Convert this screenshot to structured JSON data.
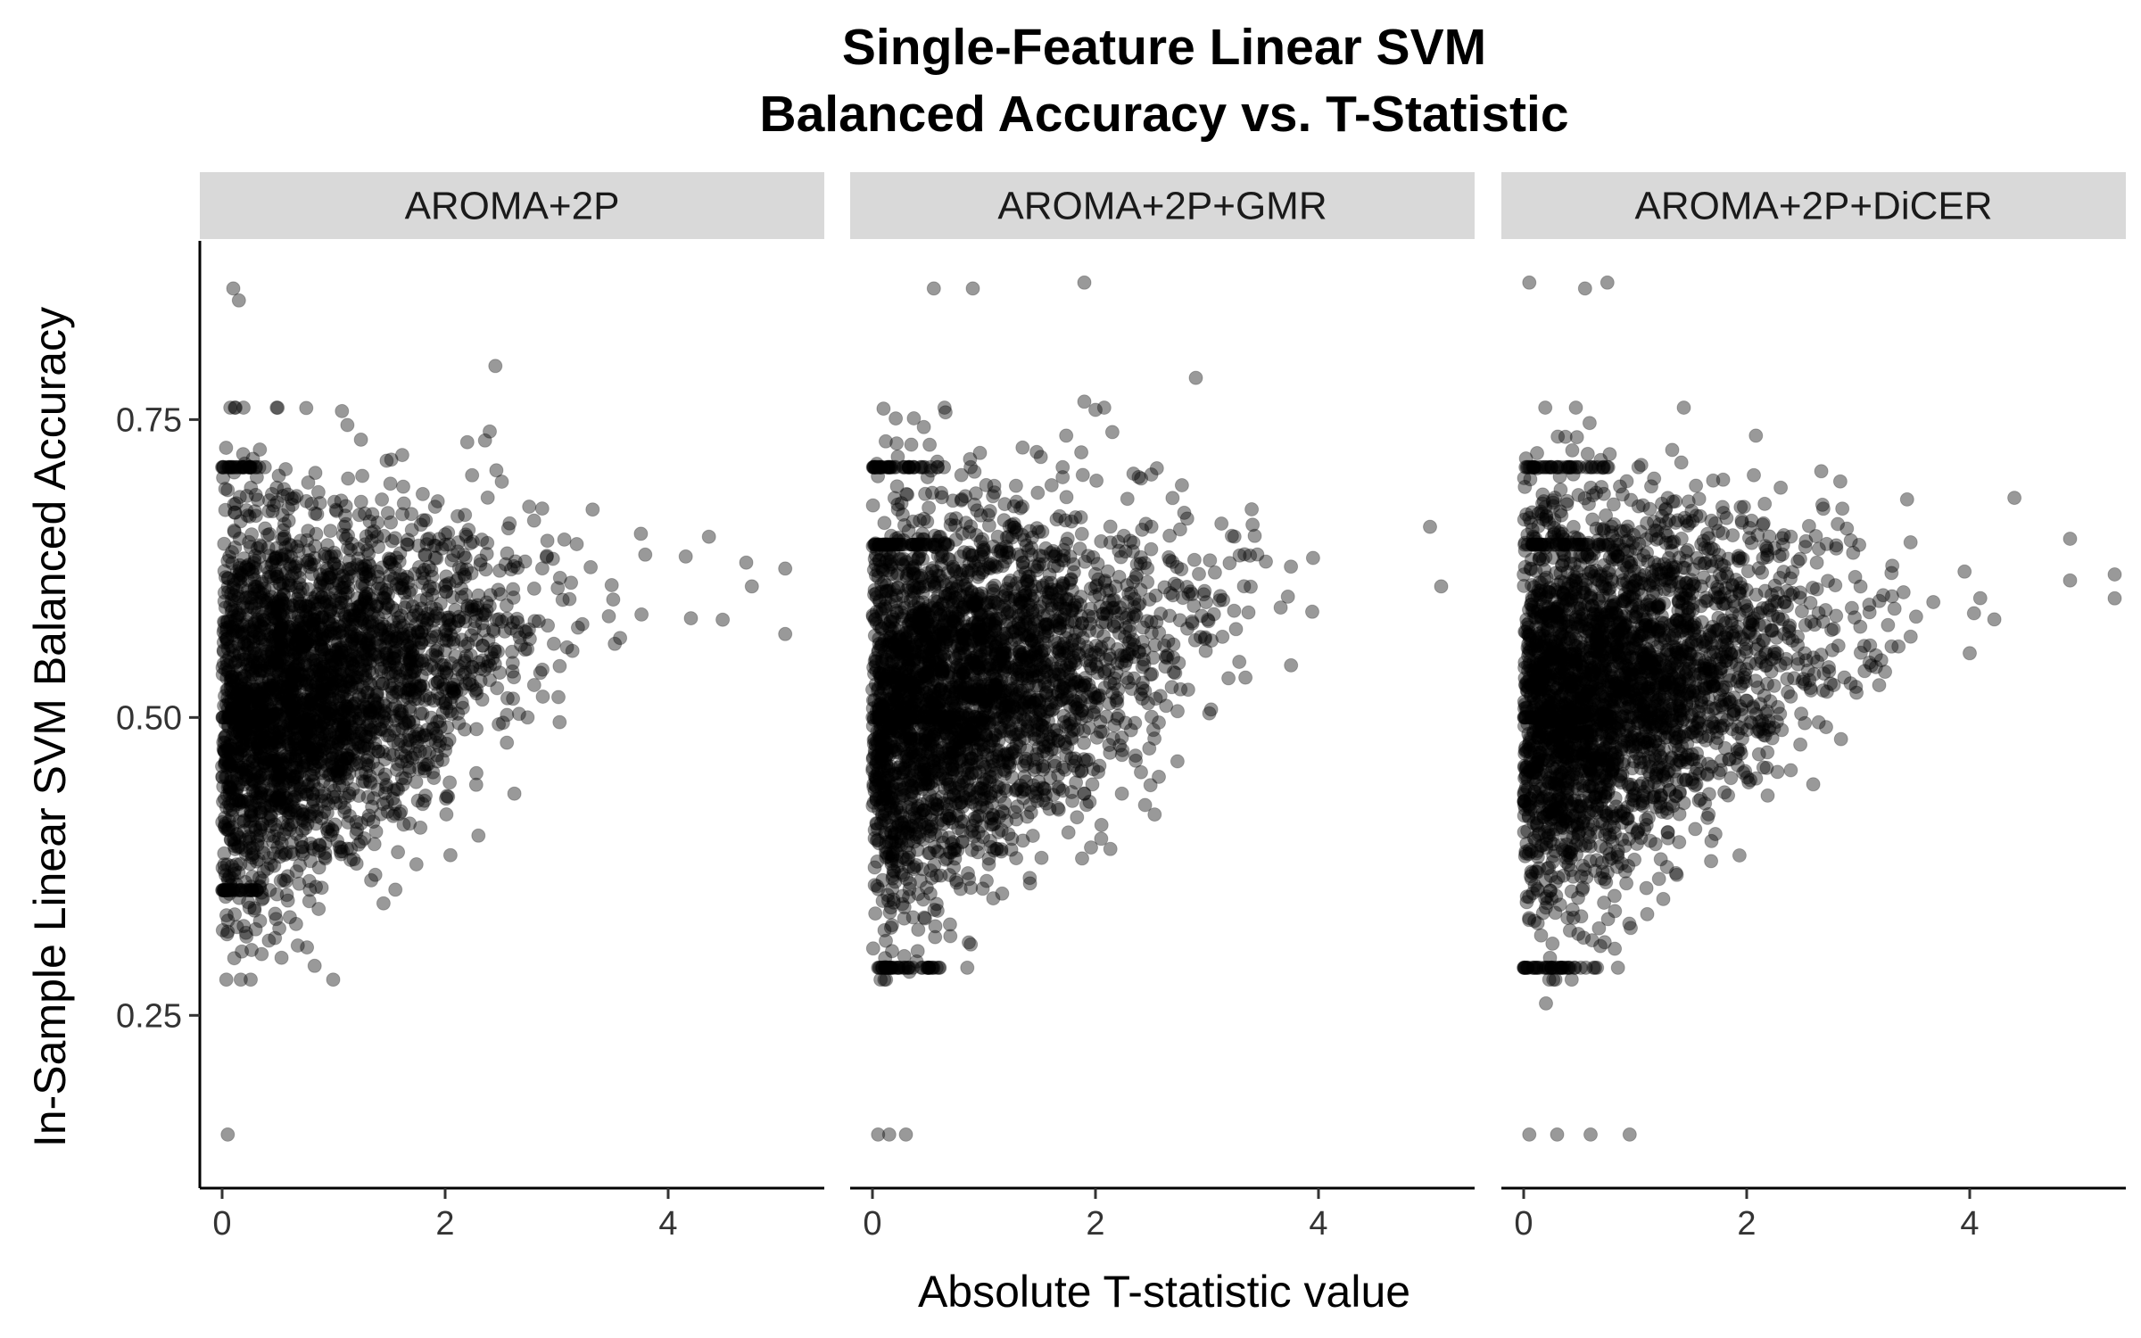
{
  "chart_data": {
    "type": "scatter",
    "title": "Single-Feature Linear SVM",
    "subtitle": "Balanced Accuracy vs. T-Statistic",
    "xlabel": "Absolute T-statistic value",
    "ylabel": "In-Sample Linear SVM Balanced Accuracy",
    "xlim": [
      -0.2,
      5.4
    ],
    "ylim": [
      0.105,
      0.9
    ],
    "x_ticks": [
      "0",
      "2",
      "4"
    ],
    "y_ticks": [
      "0.25",
      "0.50",
      "0.75"
    ],
    "x_tick_values": [
      0,
      2,
      4
    ],
    "y_tick_values": [
      0.25,
      0.5,
      0.75
    ],
    "grid": false,
    "point_color": "#000000",
    "point_alpha": 0.4,
    "panel_strip_color": "#d9d9d9",
    "panels": [
      {
        "name": "AROMA+2P",
        "approx_point_count": 3000,
        "max_x": 5.1,
        "notable_points": [
          [
            0.1,
            0.86
          ],
          [
            0.15,
            0.85
          ],
          [
            2.45,
            0.795
          ],
          [
            2.4,
            0.74
          ],
          [
            5.05,
            0.625
          ],
          [
            4.7,
            0.63
          ],
          [
            4.75,
            0.61
          ],
          [
            5.05,
            0.57
          ],
          [
            0.05,
            0.15
          ],
          [
            0.0,
            0.71
          ],
          [
            0.05,
            0.355
          ]
        ]
      },
      {
        "name": "AROMA+2P+GMR",
        "approx_point_count": 3000,
        "max_x": 5.1,
        "notable_points": [
          [
            0.55,
            0.86
          ],
          [
            0.9,
            0.86
          ],
          [
            1.9,
            0.865
          ],
          [
            2.9,
            0.785
          ],
          [
            1.9,
            0.765
          ],
          [
            5.0,
            0.66
          ],
          [
            5.1,
            0.61
          ],
          [
            0.05,
            0.15
          ],
          [
            0.15,
            0.15
          ],
          [
            0.3,
            0.15
          ],
          [
            0.05,
            0.29
          ]
        ]
      },
      {
        "name": "AROMA+2P+DiCER",
        "approx_point_count": 3000,
        "max_x": 5.3,
        "notable_points": [
          [
            0.05,
            0.865
          ],
          [
            0.55,
            0.86
          ],
          [
            0.75,
            0.865
          ],
          [
            5.3,
            0.62
          ],
          [
            5.3,
            0.6
          ],
          [
            4.9,
            0.65
          ],
          [
            4.9,
            0.615
          ],
          [
            0.05,
            0.15
          ],
          [
            0.3,
            0.15
          ],
          [
            0.6,
            0.15
          ],
          [
            0.95,
            0.15
          ],
          [
            0.2,
            0.26
          ]
        ]
      }
    ]
  }
}
